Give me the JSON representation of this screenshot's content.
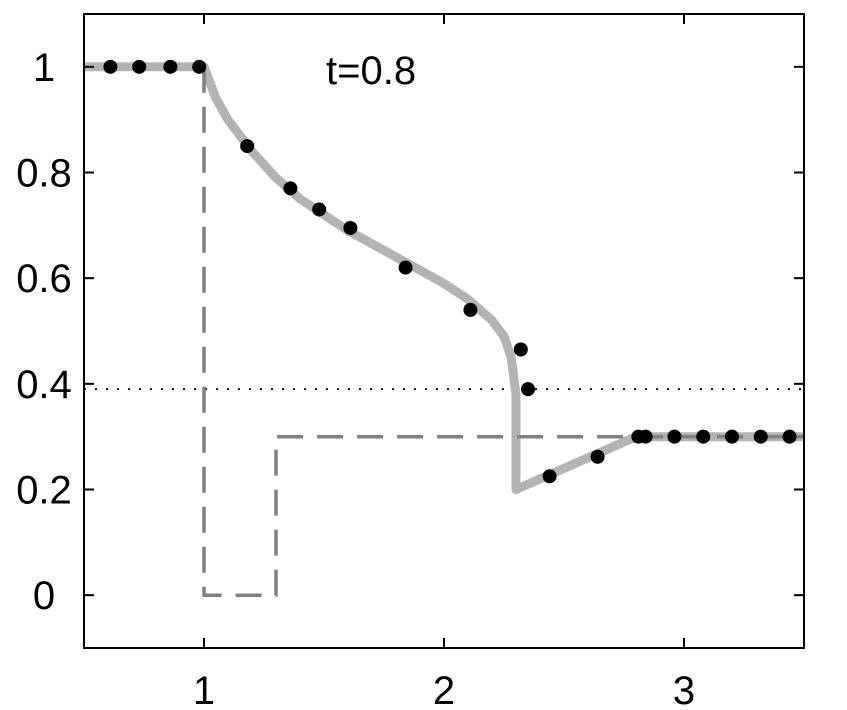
{
  "chart_data": {
    "type": "line",
    "annotation": "t=0.8",
    "xlim": [
      0.5,
      3.5
    ],
    "ylim": [
      -0.1,
      1.1
    ],
    "xticks": [
      1,
      2,
      3
    ],
    "xtick_labels": [
      "1",
      "2",
      "3"
    ],
    "yticks": [
      0,
      0.2,
      0.4,
      0.6,
      0.8,
      1
    ],
    "ytick_labels": [
      "0",
      "0.2",
      "0.4",
      "0.6",
      "0.8",
      "1"
    ],
    "grid": false,
    "reference_line_y": 0.39,
    "series": [
      {
        "style": "solid-gray-thick",
        "color": "#b3b3b3",
        "x": [
          0.5,
          1.0,
          1.05,
          1.1,
          1.2,
          1.3,
          1.4,
          1.5,
          1.6,
          1.7,
          1.8,
          1.9,
          2.0,
          2.1,
          2.2,
          2.25,
          2.28,
          2.3,
          2.3,
          2.4,
          2.5,
          2.6,
          2.7,
          2.8,
          3.0,
          3.2,
          3.5
        ],
        "y": [
          1.0,
          1.0,
          0.94,
          0.9,
          0.84,
          0.79,
          0.75,
          0.72,
          0.69,
          0.665,
          0.64,
          0.615,
          0.59,
          0.56,
          0.52,
          0.49,
          0.45,
          0.38,
          0.2,
          0.22,
          0.24,
          0.26,
          0.28,
          0.3,
          0.3,
          0.3,
          0.3
        ]
      },
      {
        "style": "dashed-gray",
        "color": "#808080",
        "x": [
          1.0,
          1.0,
          1.25,
          1.3,
          1.3,
          3.5
        ],
        "y": [
          1.0,
          0.0,
          0.0,
          0.0,
          0.3,
          0.3
        ]
      },
      {
        "style": "black-dots",
        "color": "#000000",
        "x": [
          0.61,
          0.73,
          0.86,
          0.98,
          1.18,
          1.36,
          1.48,
          1.61,
          1.84,
          2.11,
          2.32,
          2.35,
          2.44,
          2.64,
          2.81,
          2.84,
          2.96,
          3.08,
          3.2,
          3.32,
          3.44
        ],
        "y": [
          1.0,
          1.0,
          1.0,
          1.0,
          0.85,
          0.77,
          0.73,
          0.695,
          0.62,
          0.54,
          0.465,
          0.39,
          0.225,
          0.262,
          0.3,
          0.3,
          0.3,
          0.3,
          0.3,
          0.3,
          0.3
        ]
      }
    ]
  }
}
